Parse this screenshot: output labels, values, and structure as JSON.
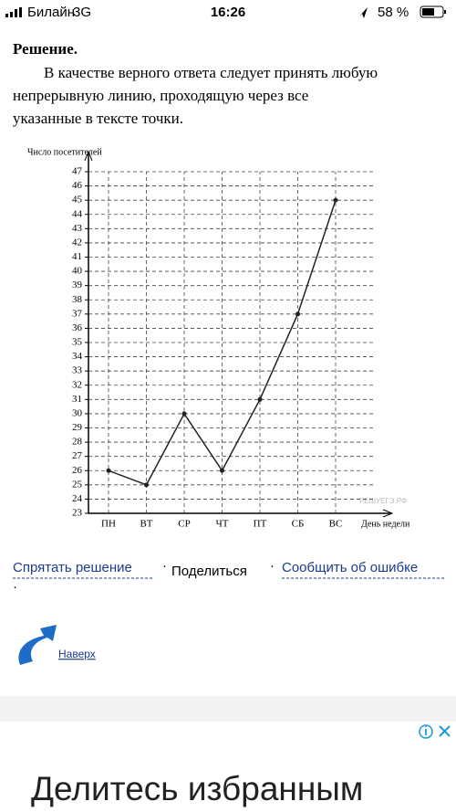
{
  "status_bar": {
    "carrier": "Билайн",
    "network": "3G",
    "time": "16:26",
    "battery": "58 %"
  },
  "solution": {
    "heading": "Решение.",
    "lines": [
      "В качестве верного ответа следует принять любую",
      "непрерывную линию, проходящую через все",
      "указанные в тексте точки."
    ]
  },
  "chart_data": {
    "type": "line",
    "y_label": "Число посетителей",
    "x_label": "День недели",
    "watermark": "РЕШУЕГЭ.РФ",
    "categories": [
      "ПН",
      "ВТ",
      "СР",
      "ЧТ",
      "ПТ",
      "СБ",
      "ВС"
    ],
    "values": [
      26,
      25,
      30,
      26,
      31,
      37,
      45
    ],
    "color": "#222222",
    "ylim": [
      23,
      47
    ],
    "yticks": [
      23,
      24,
      25,
      26,
      27,
      28,
      29,
      30,
      31,
      32,
      33,
      34,
      35,
      36,
      37,
      38,
      39,
      40,
      41,
      42,
      43,
      44,
      45,
      46,
      47
    ],
    "grid": true
  },
  "links": {
    "hide": "Спрятать решение",
    "share": "Поделиться",
    "report": "Сообщить об ошибке",
    "top": "Наверх"
  },
  "ad": {
    "title": "Делитесь избранным"
  }
}
